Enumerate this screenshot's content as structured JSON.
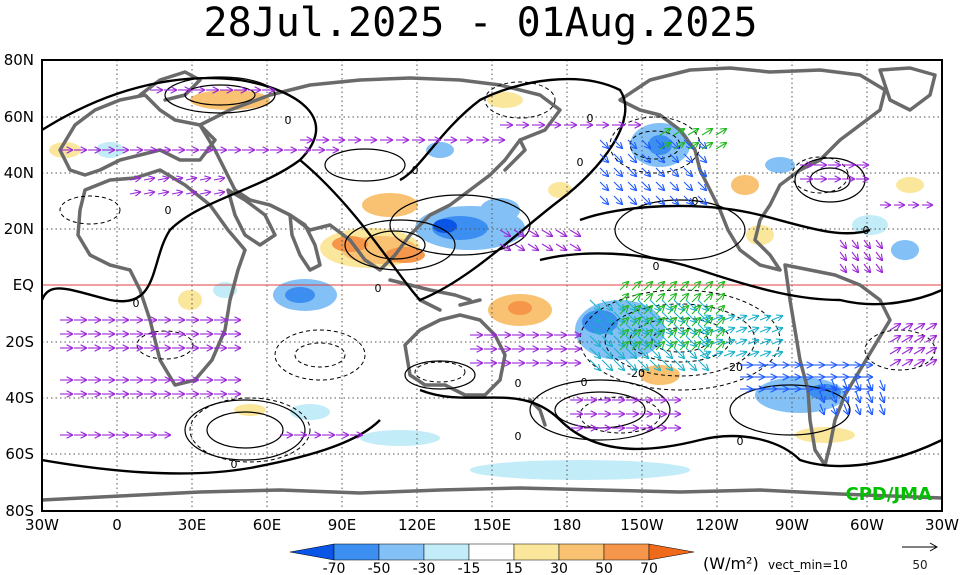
{
  "title": "28Jul.2025 - 01Aug.2025",
  "lat_labels": [
    "80N",
    "60N",
    "40N",
    "20N",
    "EQ",
    "20S",
    "40S",
    "60S",
    "80S"
  ],
  "lon_labels": [
    "30W",
    "0",
    "30E",
    "60E",
    "90E",
    "120E",
    "150E",
    "180",
    "150W",
    "120W",
    "90W",
    "60W",
    "30W"
  ],
  "contour_labels": [
    "0",
    "0",
    "0",
    "0",
    "0",
    "0",
    "0",
    "0",
    "0",
    "0",
    "0",
    "0",
    "0",
    "-20",
    "-20",
    "0",
    "0"
  ],
  "credit": "CPD/JMA",
  "colorbar": {
    "labels": [
      "-70",
      "-50",
      "-30",
      "-15",
      "15",
      "30",
      "50",
      "70"
    ],
    "colors": [
      "#0a55e6",
      "#3c8ff0",
      "#82c0f5",
      "#c2ecf7",
      "#ffffff",
      "#fbe79c",
      "#f8c272",
      "#f5964a",
      "#f06a1c"
    ]
  },
  "unit_label": "(W/m²)",
  "vect_min_label": "vect_min=10",
  "ref_vector_label": "50",
  "colors": {
    "coast": "#6a6a6a",
    "vector_primary": "#9a25d8",
    "vector_blue": "#1e5aff",
    "vector_green": "#1fb81f",
    "vector_cyan": "#1ab0c8",
    "equator": "#e04040",
    "credit": "#00c000"
  }
}
